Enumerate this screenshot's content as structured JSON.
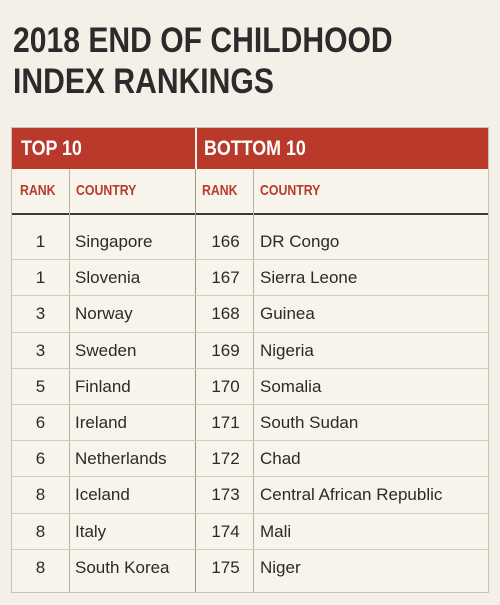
{
  "title": {
    "line1": "2018 END OF CHILDHOOD",
    "line2": "INDEX RANKINGS"
  },
  "groups": {
    "top": "TOP 10",
    "bottom": "BOTTOM 10"
  },
  "columns": {
    "rank": "RANK",
    "country": "COUNTRY"
  },
  "top10": [
    {
      "rank": "1",
      "country": "Singapore"
    },
    {
      "rank": "1",
      "country": "Slovenia"
    },
    {
      "rank": "3",
      "country": "Norway"
    },
    {
      "rank": "3",
      "country": "Sweden"
    },
    {
      "rank": "5",
      "country": "Finland"
    },
    {
      "rank": "6",
      "country": "Ireland"
    },
    {
      "rank": "6",
      "country": "Netherlands"
    },
    {
      "rank": "8",
      "country": "Iceland"
    },
    {
      "rank": "8",
      "country": "Italy"
    },
    {
      "rank": "8",
      "country": "South Korea"
    }
  ],
  "bottom10": [
    {
      "rank": "166",
      "country": "DR Congo"
    },
    {
      "rank": "167",
      "country": "Sierra Leone"
    },
    {
      "rank": "168",
      "country": "Guinea"
    },
    {
      "rank": "169",
      "country": "Nigeria"
    },
    {
      "rank": "170",
      "country": "Somalia"
    },
    {
      "rank": "171",
      "country": "South Sudan"
    },
    {
      "rank": "172",
      "country": "Chad"
    },
    {
      "rank": "173",
      "country": "Central African Republic"
    },
    {
      "rank": "174",
      "country": "Mali"
    },
    {
      "rank": "175",
      "country": "Niger"
    }
  ],
  "colors": {
    "accent": "#b93a2b",
    "background": "#f4f0e7",
    "text": "#2a2a2a"
  }
}
